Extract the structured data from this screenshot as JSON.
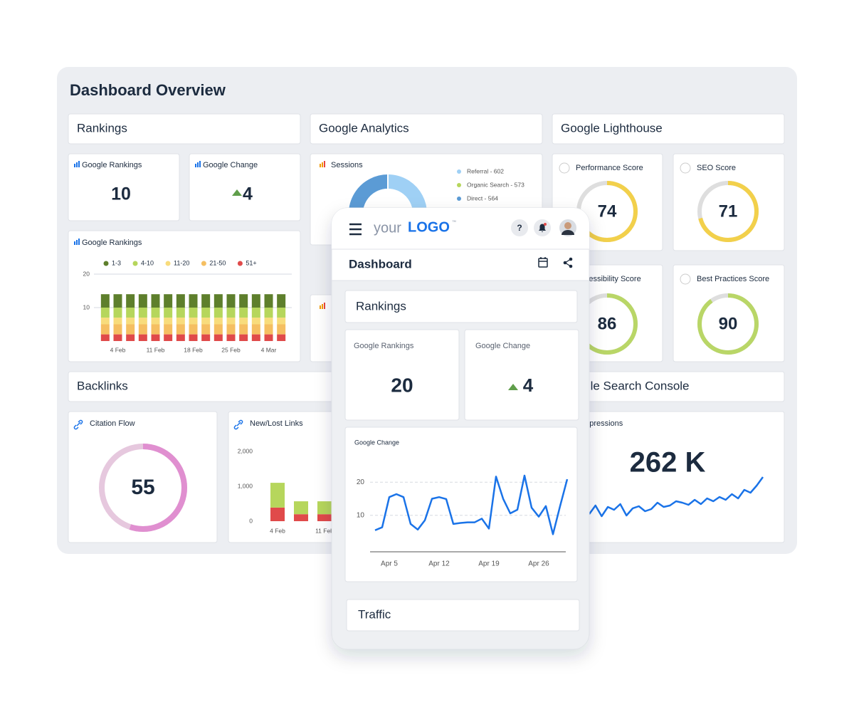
{
  "dashboard": {
    "title": "Dashboard Overview",
    "rankings": {
      "title": "Rankings",
      "google_rankings": {
        "label": "Google Rankings",
        "value": 10
      },
      "google_change": {
        "label": "Google Change",
        "value": 4
      },
      "chart_data": {
        "type": "bar",
        "stacked": true,
        "title": "Google Rankings",
        "categories": [
          null,
          "4 Feb",
          null,
          null,
          "11 Feb",
          null,
          null,
          "18 Feb",
          null,
          null,
          "25 Feb",
          null,
          null,
          "4 Mar",
          null
        ],
        "series": [
          {
            "name": "1-3",
            "color": "#5e7f2c",
            "values": [
              4,
              4,
              4,
              4,
              4,
              4,
              4,
              4,
              4,
              4,
              4,
              4,
              4,
              4,
              4
            ]
          },
          {
            "name": "4-10",
            "color": "#b6d65c",
            "values": [
              3,
              3,
              3,
              3,
              3,
              3,
              3,
              3,
              3,
              3,
              3,
              3,
              3,
              3,
              3
            ]
          },
          {
            "name": "11-20",
            "color": "#f8dc7c",
            "values": [
              2,
              2,
              2,
              2,
              2,
              2,
              2,
              2,
              2,
              2,
              2,
              2,
              2,
              2,
              2
            ]
          },
          {
            "name": "21-50",
            "color": "#f5bf62",
            "values": [
              3,
              3,
              3,
              3,
              3,
              3,
              3,
              3,
              3,
              3,
              3,
              3,
              3,
              3,
              3
            ]
          },
          {
            "name": "51+",
            "color": "#e04a4a",
            "values": [
              2,
              2,
              2,
              2,
              2,
              2,
              2,
              2,
              2,
              2,
              2,
              2,
              2,
              2,
              2
            ]
          }
        ],
        "ylim": [
          0,
          20
        ],
        "yticks": [
          10,
          20
        ],
        "grid": true
      }
    },
    "analytics": {
      "title": "Google Analytics",
      "chart_data": {
        "type": "donut",
        "title": "Sessions",
        "categories": [
          "Referral - 602",
          "Organic Search - 573",
          "Direct - 564"
        ],
        "values": [
          602,
          573,
          564
        ],
        "colors": [
          "#9fd0f5",
          "#b6d65c",
          "#5b9bd5"
        ]
      }
    },
    "lighthouse": {
      "title": "Google Lighthouse",
      "scores": [
        {
          "label": "Performance Score",
          "value": 74,
          "color": "#f2d04b",
          "track_color": "#dedede"
        },
        {
          "label": "SEO Score",
          "value": 71,
          "color": "#f2d04b",
          "track_color": "#dedede"
        },
        {
          "label": "Accessibility Score",
          "value": 86,
          "color": "#b9d667",
          "track_color": "#dedede"
        },
        {
          "label": "Best Practices Score",
          "value": 90,
          "color": "#b9d667",
          "track_color": "#dedede"
        }
      ]
    },
    "backlinks": {
      "title": "Backlinks",
      "citation_flow": {
        "label": "Citation Flow",
        "value": 55,
        "color": "#e08fd0",
        "track_color": "#e6c8de"
      },
      "chart_data": {
        "type": "bar",
        "stacked": true,
        "title": "New/Lost Links",
        "categories": [
          "4 Feb",
          null,
          "11 Feb"
        ],
        "series": [
          {
            "color": "#b6d65c",
            "values": [
              710,
              370,
              370
            ]
          },
          {
            "color": "#e04a4a",
            "values": [
              390,
              200,
              200
            ]
          }
        ],
        "ylim": [
          0,
          2000
        ],
        "yticks": [
          0,
          {
            "value": 1000,
            "label": "1,000"
          },
          {
            "value": 2000,
            "label": "2,000"
          }
        ]
      }
    },
    "search_console": {
      "title": "Google Search Console",
      "impressions": {
        "label": "Impressions",
        "value": "262 K",
        "color": "#1a73e8",
        "trend": [
          6,
          18,
          3,
          16,
          12,
          20,
          4,
          14,
          17,
          10,
          13,
          22,
          16,
          18,
          24,
          22,
          19,
          26,
          20,
          28,
          24,
          30,
          26,
          34,
          28,
          40,
          36,
          46,
          58
        ]
      }
    }
  },
  "mobile": {
    "logo": {
      "prefix": "your",
      "brand": "LOGO",
      "mark": "™"
    },
    "help": "?",
    "title": "Dashboard",
    "rankings": {
      "title": "Rankings",
      "google_rankings": {
        "label": "Google Rankings",
        "value": 20
      },
      "google_change": {
        "label": "Google Change",
        "value": 4
      },
      "chart_data": {
        "type": "line",
        "title": "Google Change",
        "categories": [
          null,
          null,
          "Apr 5",
          null,
          null,
          null,
          null,
          null,
          null,
          "Apr 12",
          null,
          null,
          null,
          null,
          null,
          null,
          "Apr 19",
          null,
          null,
          null,
          null,
          null,
          null,
          "Apr 26",
          null,
          null,
          null,
          null
        ],
        "series": [
          {
            "color": "#1a73e8",
            "values": [
              5.5,
              6.4,
              15.5,
              16.4,
              15.5,
              7.4,
              5.7,
              8.5,
              15,
              15.5,
              14.9,
              7.4,
              7.7,
              7.9,
              7.9,
              9,
              6,
              21.7,
              15,
              10.6,
              11.7,
              22,
              12.3,
              9.6,
              12.8,
              4.3,
              12.8,
              20.9
            ]
          }
        ],
        "ylim": [
          -1,
          28
        ],
        "yticks": [
          10,
          20
        ],
        "grid": true
      }
    },
    "traffic": {
      "title": "Traffic"
    }
  }
}
